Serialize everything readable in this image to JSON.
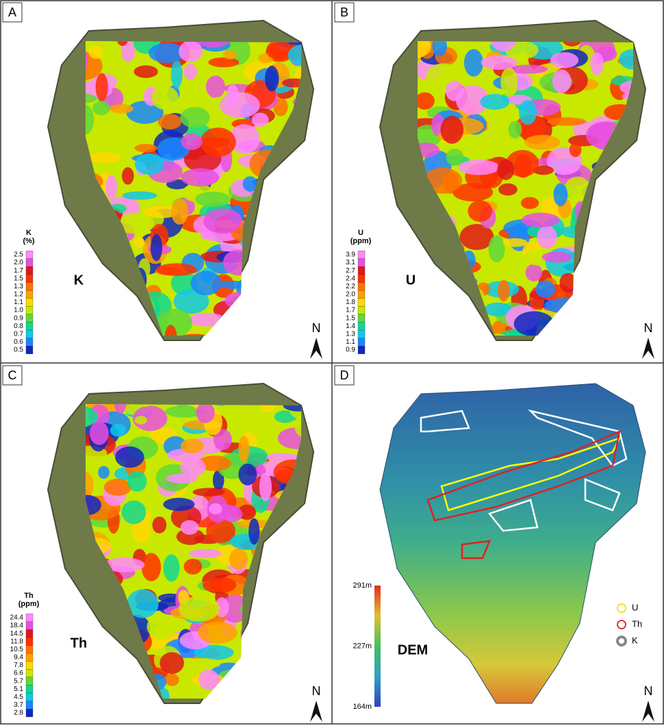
{
  "panels": [
    {
      "letter": "A",
      "label": "K",
      "north": "N",
      "legend": {
        "title": [
          "K",
          "(%)"
        ],
        "ticks": [
          "2.5",
          "2.0",
          "1.7",
          "1.5",
          "1.3",
          "1.2",
          "1.1",
          "1.0",
          "0.9",
          "0.8",
          "0.7",
          "0.6",
          "0.5"
        ]
      }
    },
    {
      "letter": "B",
      "label": "U",
      "north": "N",
      "legend": {
        "title": [
          "U",
          "(ppm)"
        ],
        "ticks": [
          "3.9",
          "3.1",
          "2.7",
          "2.4",
          "2.2",
          "2.0",
          "1.8",
          "1.7",
          "1.5",
          "1.4",
          "1.3",
          "1.1",
          "0.9"
        ]
      }
    },
    {
      "letter": "C",
      "label": "Th",
      "north": "N",
      "legend": {
        "title": [
          "Th",
          "(ppm)"
        ],
        "ticks": [
          "24.4",
          "18.4",
          "14.5",
          "11.8",
          "10.5",
          "9.4",
          "7.8",
          "6.6",
          "5.7",
          "5.1",
          "4.5",
          "3.7",
          "2.8"
        ]
      }
    },
    {
      "letter": "D",
      "label": "DEM",
      "north": "N",
      "legend": {
        "ticks": [
          "291m",
          "227m",
          "164m"
        ]
      },
      "key": [
        "U",
        "Th",
        "K"
      ]
    }
  ]
}
